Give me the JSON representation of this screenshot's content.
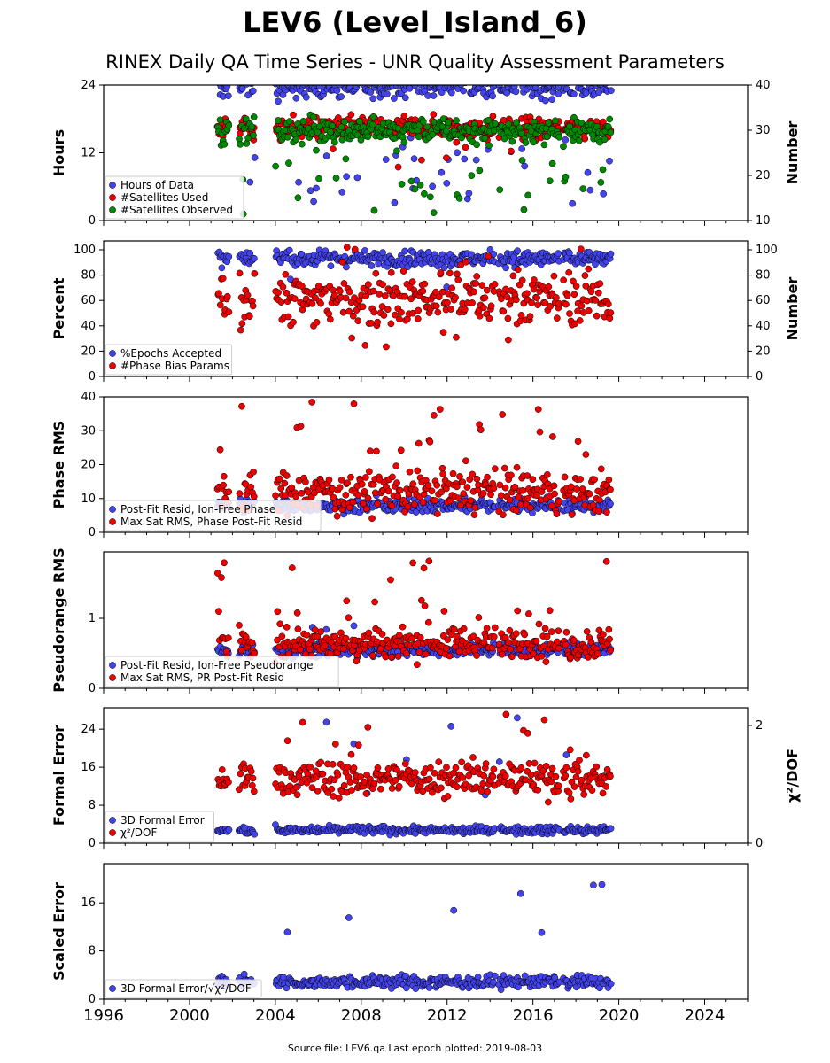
{
  "title": "LEV6 (Level_Island_6)",
  "subtitle": "RINEX Daily QA Time Series - UNR Quality Assessment Parameters",
  "footer": "Source file: LEV6.qa Last epoch plotted: 2019-08-03",
  "colors": {
    "blue": "#4444ee",
    "red": "#ee0000",
    "green": "#008800",
    "edge": "#000000"
  },
  "chart_data": [
    {
      "type": "scatter",
      "ylabel": "Hours",
      "ylabel_right": "Number",
      "xlim": [
        1996,
        2026
      ],
      "ylim": [
        0,
        24
      ],
      "ylim_right": [
        10,
        40
      ],
      "yticks": [
        0,
        12,
        24
      ],
      "yticks_right": [
        10,
        20,
        30,
        40
      ],
      "legend": "lower-left",
      "series": [
        {
          "name": "Hours of Data",
          "color": "blue",
          "axis": "left",
          "base": 23.5,
          "spread": 0.9,
          "outlier_range": [
            3,
            18
          ],
          "outlier_rate": 0.12
        },
        {
          "name": "#Satellites Used",
          "color": "red",
          "axis": "right",
          "base": 30.5,
          "spread": 1.2,
          "outlier_range": [
            20,
            28
          ],
          "outlier_rate": 0.03
        },
        {
          "name": "#Satellites Observed",
          "color": "green",
          "axis": "right",
          "base": 30,
          "spread": 1.3,
          "outlier_range": [
            11,
            28
          ],
          "outlier_rate": 0.08
        }
      ]
    },
    {
      "type": "scatter",
      "ylabel": "Percent",
      "ylabel_right": "Number",
      "xlim": [
        1996,
        2026
      ],
      "ylim": [
        0,
        107
      ],
      "ylim_right": [
        0,
        107
      ],
      "yticks": [
        0,
        20,
        40,
        60,
        80,
        100
      ],
      "yticks_right": [
        0,
        20,
        40,
        60,
        80,
        100
      ],
      "legend": "lower-left",
      "series": [
        {
          "name": "%Epochs Accepted",
          "color": "blue",
          "axis": "left",
          "base": 93,
          "spread": 3,
          "outlier_range": [
            70,
            100
          ],
          "outlier_rate": 0.02
        },
        {
          "name": "#Phase Bias Params",
          "color": "red",
          "axis": "right",
          "base": 62,
          "spread": 10,
          "outlier_range": [
            12,
            104
          ],
          "outlier_rate": 0.08
        }
      ]
    },
    {
      "type": "scatter",
      "ylabel": "Phase RMS",
      "xlim": [
        1996,
        2026
      ],
      "ylim": [
        0,
        40
      ],
      "yticks": [
        0,
        10,
        20,
        30,
        40
      ],
      "legend": "lower-left",
      "series": [
        {
          "name": "Post-Fit Resid, Ion-Free Phase",
          "color": "blue",
          "axis": "left",
          "base": 8,
          "spread": 1,
          "outlier_range": [
            6,
            12
          ],
          "outlier_rate": 0.02
        },
        {
          "name": "Max Sat RMS, Phase Post-Fit Resid",
          "color": "red",
          "axis": "left",
          "base": 12,
          "spread": 3,
          "outlier_range": [
            18,
            38.5
          ],
          "outlier_rate": 0.06
        }
      ]
    },
    {
      "type": "scatter",
      "ylabel": "Pseudorange RMS",
      "xlim": [
        1996,
        2026
      ],
      "ylim": [
        0,
        1.95
      ],
      "yticks": [
        0,
        1
      ],
      "legend": "lower-left",
      "series": [
        {
          "name": "Post-Fit Resid, Ion-Free Pseudorange",
          "color": "blue",
          "axis": "left",
          "base": 0.55,
          "spread": 0.05,
          "outlier_range": [
            0.5,
            1.0
          ],
          "outlier_rate": 0.01
        },
        {
          "name": "Max Sat RMS, PR Post-Fit Resid",
          "color": "red",
          "axis": "left",
          "base": 0.65,
          "spread": 0.12,
          "outlier_range": [
            1.0,
            1.85
          ],
          "outlier_rate": 0.04
        }
      ]
    },
    {
      "type": "scatter",
      "ylabel": "Formal Error",
      "ylabel_right": "χ²/DOF",
      "xlim": [
        1996,
        2026
      ],
      "ylim": [
        0,
        28.5
      ],
      "ylim_right": [
        0,
        2.3
      ],
      "yticks": [
        0,
        8,
        16,
        24
      ],
      "yticks_right": [
        0,
        2
      ],
      "legend": "lower-left",
      "series": [
        {
          "name": "3D Formal Error",
          "color": "blue",
          "axis": "left",
          "base": 2.8,
          "spread": 0.4,
          "outlier_range": [
            3.5,
            27
          ],
          "outlier_rate": 0.02
        },
        {
          "name": "χ²/DOF",
          "color": "red",
          "axis": "right",
          "base": 1.1,
          "spread": 0.15,
          "outlier_range": [
            0.6,
            2.2
          ],
          "outlier_rate": 0.04
        }
      ]
    },
    {
      "type": "scatter",
      "ylabel": "Scaled Error",
      "xlim": [
        1996,
        2026
      ],
      "ylim": [
        0,
        22.5
      ],
      "yticks": [
        0,
        8,
        16
      ],
      "xticks": [
        1996,
        2000,
        2004,
        2008,
        2012,
        2016,
        2020,
        2024
      ],
      "legend": "lower-left",
      "series": [
        {
          "name": "3D Formal Error/√χ²/DOF",
          "color": "blue",
          "axis": "left",
          "base": 2.9,
          "spread": 0.5,
          "outlier_range": [
            4,
            21.5
          ],
          "outlier_rate": 0.02
        }
      ]
    }
  ]
}
